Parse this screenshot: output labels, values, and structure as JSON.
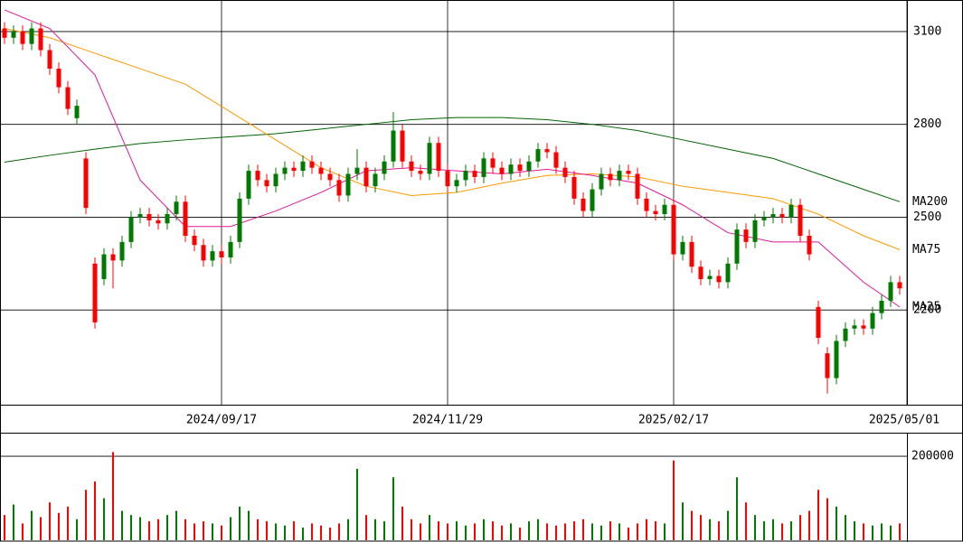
{
  "chart_data": {
    "type": "candlestick",
    "up_color": "#007a00",
    "down_color": "#ff0000",
    "open": [
      3110,
      3080,
      3100,
      3060,
      3110,
      3040,
      2980,
      2920,
      2820,
      2690,
      2350,
      2300,
      2380,
      2360,
      2420,
      2500,
      2510,
      2490,
      2480,
      2510,
      2550,
      2440,
      2410,
      2360,
      2390,
      2370,
      2420,
      2560,
      2650,
      2620,
      2600,
      2640,
      2660,
      2650,
      2680,
      2660,
      2640,
      2620,
      2570,
      2640,
      2660,
      2600,
      2640,
      2680,
      2780,
      2680,
      2650,
      2640,
      2740,
      2650,
      2600,
      2620,
      2650,
      2630,
      2690,
      2660,
      2640,
      2670,
      2650,
      2680,
      2720,
      2710,
      2660,
      2630,
      2560,
      2520,
      2590,
      2640,
      2620,
      2650,
      2640,
      2560,
      2520,
      2510,
      2540,
      2380,
      2420,
      2340,
      2300,
      2310,
      2290,
      2350,
      2460,
      2420,
      2490,
      2500,
      2510,
      2500,
      2540,
      2440,
      2210,
      2060,
      1980,
      2100,
      2140,
      2150,
      2140,
      2190,
      2230,
      2290
    ],
    "high": [
      3130,
      3120,
      3120,
      3130,
      3130,
      3060,
      3000,
      2940,
      2880,
      2710,
      2370,
      2400,
      2400,
      2440,
      2520,
      2530,
      2530,
      2510,
      2530,
      2570,
      2570,
      2460,
      2430,
      2410,
      2410,
      2440,
      2580,
      2670,
      2670,
      2640,
      2660,
      2680,
      2680,
      2700,
      2700,
      2680,
      2660,
      2640,
      2660,
      2720,
      2680,
      2660,
      2700,
      2840,
      2800,
      2700,
      2670,
      2760,
      2760,
      2670,
      2640,
      2670,
      2670,
      2710,
      2710,
      2680,
      2690,
      2690,
      2700,
      2740,
      2740,
      2730,
      2680,
      2650,
      2580,
      2610,
      2660,
      2660,
      2670,
      2670,
      2660,
      2580,
      2540,
      2560,
      2560,
      2440,
      2440,
      2360,
      2330,
      2330,
      2370,
      2480,
      2480,
      2510,
      2520,
      2530,
      2530,
      2560,
      2560,
      2460,
      2230,
      2080,
      2120,
      2160,
      2170,
      2170,
      2210,
      2250,
      2310,
      2310
    ],
    "low": [
      3060,
      3060,
      3040,
      3040,
      3020,
      2960,
      2900,
      2830,
      2800,
      2510,
      2140,
      2280,
      2270,
      2340,
      2400,
      2480,
      2470,
      2460,
      2460,
      2490,
      2420,
      2390,
      2340,
      2340,
      2350,
      2350,
      2400,
      2540,
      2600,
      2580,
      2580,
      2620,
      2630,
      2630,
      2640,
      2620,
      2600,
      2550,
      2550,
      2620,
      2580,
      2580,
      2620,
      2660,
      2660,
      2630,
      2620,
      2620,
      2630,
      2580,
      2580,
      2600,
      2610,
      2610,
      2640,
      2620,
      2620,
      2630,
      2630,
      2660,
      2690,
      2640,
      2610,
      2540,
      2500,
      2500,
      2570,
      2600,
      2600,
      2620,
      2540,
      2500,
      2490,
      2490,
      2360,
      2360,
      2320,
      2280,
      2280,
      2270,
      2270,
      2330,
      2400,
      2400,
      2470,
      2480,
      2480,
      2480,
      2420,
      2360,
      2090,
      1930,
      1960,
      2080,
      2120,
      2120,
      2120,
      2170,
      2210,
      2250
    ],
    "close": [
      3080,
      3100,
      3060,
      3110,
      3040,
      2980,
      2920,
      2850,
      2860,
      2530,
      2160,
      2380,
      2360,
      2420,
      2500,
      2510,
      2490,
      2480,
      2510,
      2550,
      2440,
      2410,
      2360,
      2390,
      2370,
      2420,
      2560,
      2650,
      2620,
      2600,
      2640,
      2660,
      2650,
      2680,
      2660,
      2640,
      2620,
      2570,
      2640,
      2660,
      2600,
      2640,
      2680,
      2780,
      2680,
      2650,
      2640,
      2740,
      2650,
      2600,
      2620,
      2650,
      2630,
      2690,
      2660,
      2640,
      2670,
      2650,
      2680,
      2720,
      2710,
      2660,
      2630,
      2560,
      2520,
      2590,
      2640,
      2620,
      2650,
      2640,
      2560,
      2520,
      2510,
      2540,
      2380,
      2420,
      2340,
      2300,
      2310,
      2290,
      2350,
      2460,
      2420,
      2490,
      2500,
      2510,
      2500,
      2540,
      2440,
      2380,
      2110,
      1980,
      2100,
      2140,
      2150,
      2140,
      2190,
      2230,
      2290,
      2270
    ],
    "xlim": [
      -0.5,
      99.8
    ],
    "xticks": [
      {
        "value": 24,
        "label": "2024/09/17"
      },
      {
        "value": 49,
        "label": "2024/11/29"
      },
      {
        "value": 74,
        "label": "2025/02/17"
      },
      {
        "value": 99.8,
        "label": "2025/05/01"
      }
    ],
    "ylim": [
      1894,
      3202
    ],
    "yticks": [
      2200,
      2500,
      2800,
      3100
    ],
    "grid": true,
    "moving_averages": [
      {
        "name": "MA200",
        "color": "#006400",
        "x": [
          0,
          5,
          10,
          15,
          20,
          25,
          30,
          35,
          40,
          45,
          50,
          55,
          60,
          65,
          70,
          75,
          80,
          85,
          90,
          95,
          99
        ],
        "values": [
          2678,
          2700,
          2720,
          2738,
          2750,
          2760,
          2770,
          2785,
          2800,
          2815,
          2822,
          2822,
          2815,
          2800,
          2780,
          2750,
          2720,
          2690,
          2640,
          2590,
          2550
        ]
      },
      {
        "name": "MA75",
        "color": "#ff9900",
        "x": [
          0,
          5,
          10,
          15,
          20,
          25,
          30,
          35,
          40,
          45,
          50,
          55,
          60,
          65,
          70,
          75,
          80,
          85,
          90,
          95,
          99
        ],
        "values": [
          3110,
          3080,
          3030,
          2980,
          2930,
          2840,
          2750,
          2660,
          2600,
          2570,
          2580,
          2610,
          2635,
          2640,
          2630,
          2600,
          2580,
          2560,
          2510,
          2440,
          2395
        ]
      },
      {
        "name": "MA25",
        "color": "#e0189a",
        "x": [
          0,
          5,
          10,
          15,
          20,
          25,
          30,
          35,
          40,
          45,
          50,
          55,
          60,
          65,
          70,
          75,
          80,
          85,
          90,
          95,
          99
        ],
        "values": [
          3170,
          3110,
          2960,
          2620,
          2470,
          2470,
          2520,
          2580,
          2650,
          2660,
          2650,
          2640,
          2655,
          2635,
          2610,
          2540,
          2450,
          2420,
          2420,
          2290,
          2210
        ]
      }
    ],
    "volume": {
      "values": [
        60000,
        85000,
        40000,
        70000,
        55000,
        90000,
        65000,
        80000,
        50000,
        120000,
        140000,
        100000,
        210000,
        70000,
        60000,
        55000,
        45000,
        50000,
        60000,
        70000,
        50000,
        40000,
        45000,
        40000,
        35000,
        55000,
        80000,
        70000,
        50000,
        45000,
        40000,
        35000,
        45000,
        30000,
        40000,
        35000,
        30000,
        40000,
        50000,
        170000,
        60000,
        50000,
        45000,
        150000,
        80000,
        50000,
        40000,
        60000,
        45000,
        40000,
        45000,
        35000,
        40000,
        50000,
        45000,
        35000,
        40000,
        30000,
        45000,
        50000,
        40000,
        35000,
        40000,
        45000,
        50000,
        40000,
        35000,
        45000,
        40000,
        30000,
        40000,
        50000,
        45000,
        40000,
        190000,
        90000,
        70000,
        60000,
        50000,
        45000,
        70000,
        150000,
        90000,
        60000,
        45000,
        50000,
        40000,
        45000,
        60000,
        70000,
        120000,
        100000,
        80000,
        60000,
        45000,
        40000,
        35000,
        40000,
        35000,
        40000
      ],
      "ylim": [
        0,
        254000
      ],
      "yticks": [
        200000
      ]
    }
  }
}
